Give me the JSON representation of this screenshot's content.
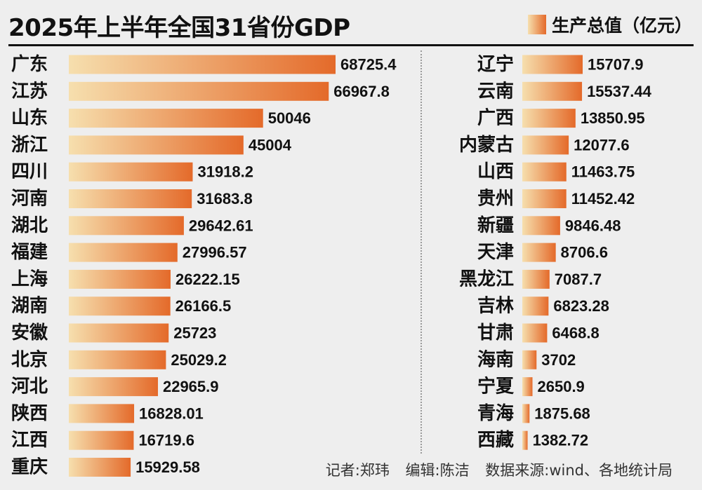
{
  "title": "2025年上半年全国31省份GDP",
  "legend": {
    "label": "生产总值（亿元）"
  },
  "footer": {
    "reporter": "记者:郑玮",
    "editor": "编辑:陈洁",
    "source": "数据来源:wind、各地统计局"
  },
  "colors": {
    "bar_start": "#f6dfae",
    "bar_end": "#e46a2a",
    "background": "#eeeeee"
  },
  "chart_data": {
    "type": "bar",
    "orientation": "horizontal",
    "unit": "亿元",
    "columns": [
      {
        "categories": [
          "广东",
          "江苏",
          "山东",
          "浙江",
          "四川",
          "河南",
          "湖北",
          "福建",
          "上海",
          "湖南",
          "安徽",
          "北京",
          "河北",
          "陕西",
          "江西",
          "重庆"
        ],
        "values": [
          68725.4,
          66967.8,
          50046,
          45004,
          31918.2,
          31683.8,
          29642.61,
          27996.57,
          26222.15,
          26166.5,
          25723,
          25029.2,
          22965.9,
          16828.01,
          16719.6,
          15929.58
        ],
        "labels": [
          "68725.4",
          "66967.8",
          "50046",
          "45004",
          "31918.2",
          "31683.8",
          "29642.61",
          "27996.57",
          "26222.15",
          "26166.5",
          "25723",
          "25029.2",
          "22965.9",
          "16828.01",
          "16719.6",
          "15929.58"
        ]
      },
      {
        "categories": [
          "辽宁",
          "云南",
          "广西",
          "内蒙古",
          "山西",
          "贵州",
          "新疆",
          "天津",
          "黑龙江",
          "吉林",
          "甘肃",
          "海南",
          "宁夏",
          "青海",
          "西藏"
        ],
        "values": [
          15707.9,
          15537.44,
          13850.95,
          12077.6,
          11463.75,
          11452.42,
          9846.48,
          8706.6,
          7087.7,
          6823.28,
          6468.8,
          3702,
          2650.9,
          1875.68,
          1382.72
        ],
        "labels": [
          "15707.9",
          "15537.44",
          "13850.95",
          "12077.6",
          "11463.75",
          "11452.42",
          "9846.48",
          "8706.6",
          "7087.7",
          "6823.28",
          "6468.8",
          "3702",
          "2650.9",
          "1875.68",
          "1382.72"
        ]
      }
    ]
  }
}
